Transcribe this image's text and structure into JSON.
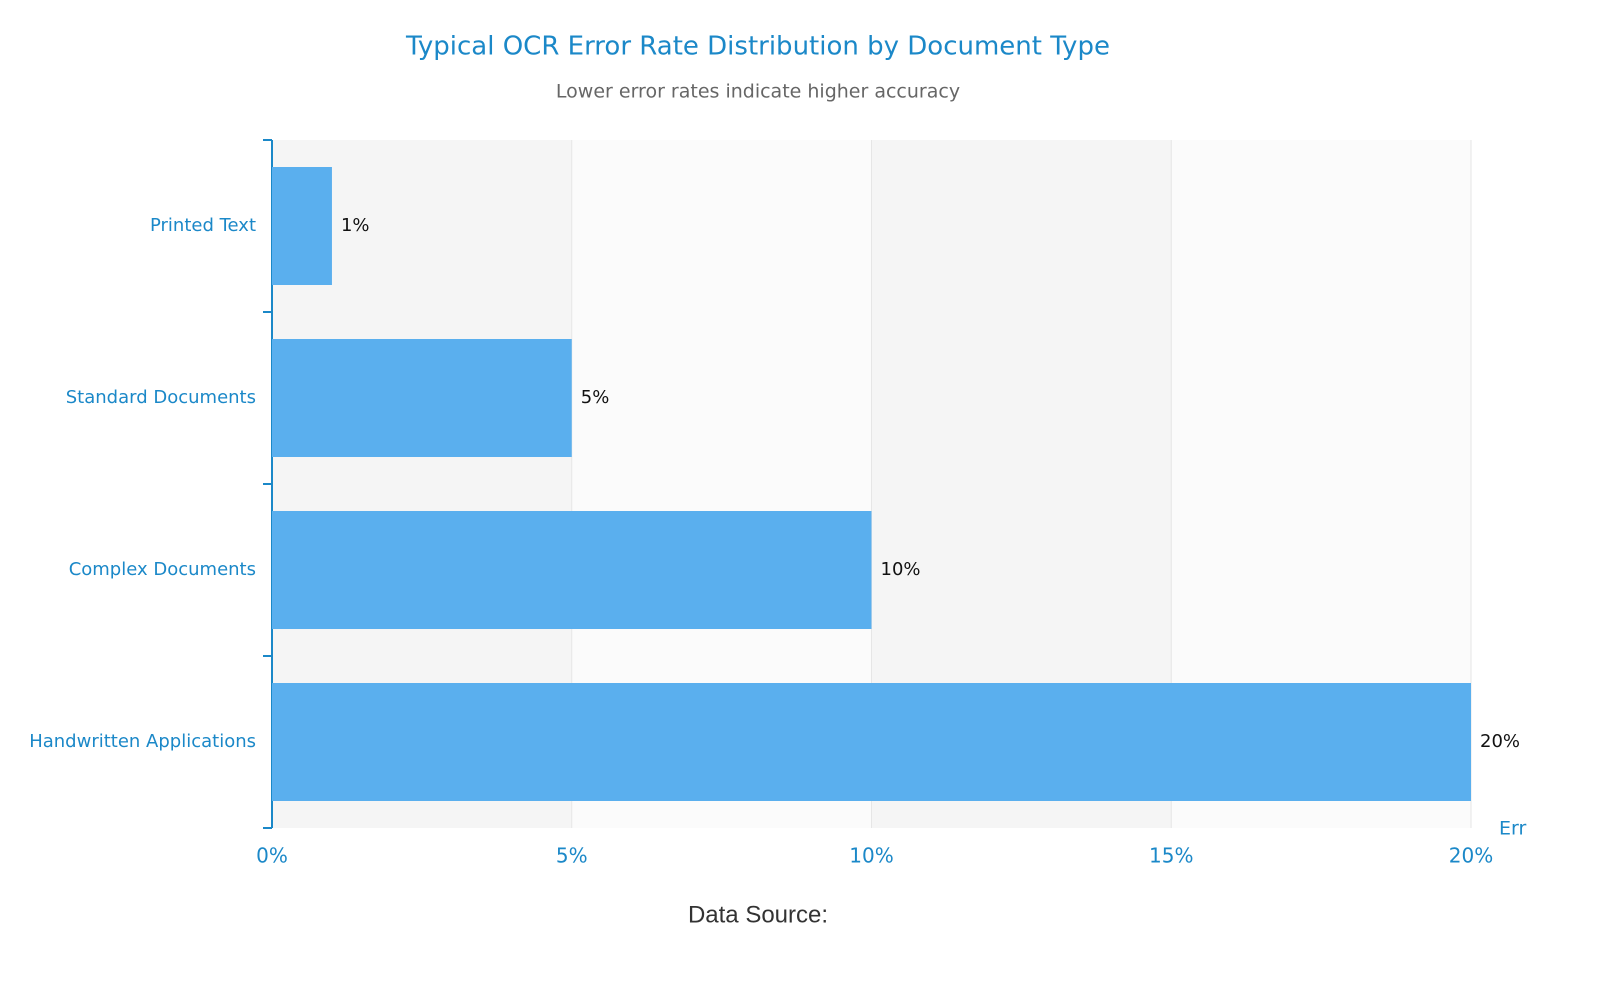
{
  "chart_data": {
    "type": "bar",
    "orientation": "horizontal",
    "title": "Typical OCR Error Rate Distribution by Document Type",
    "subtitle": "Lower error rates indicate higher accuracy",
    "x_label": "Err",
    "footer": "Data Source:",
    "categories": [
      "Printed Text",
      "Standard Documents",
      "Complex Documents",
      "Handwritten Applications"
    ],
    "values": [
      1,
      5,
      10,
      20
    ],
    "value_labels": [
      "1%",
      "5%",
      "10%",
      "20%"
    ],
    "color": "#5aafee",
    "xlim": [
      0,
      20
    ],
    "xticks": [
      {
        "value": 0,
        "label": "0%"
      },
      {
        "value": 5,
        "label": "5%"
      },
      {
        "value": 10,
        "label": "10%"
      },
      {
        "value": 15,
        "label": "15%"
      },
      {
        "value": 20,
        "label": "20%"
      }
    ],
    "grid": true
  }
}
